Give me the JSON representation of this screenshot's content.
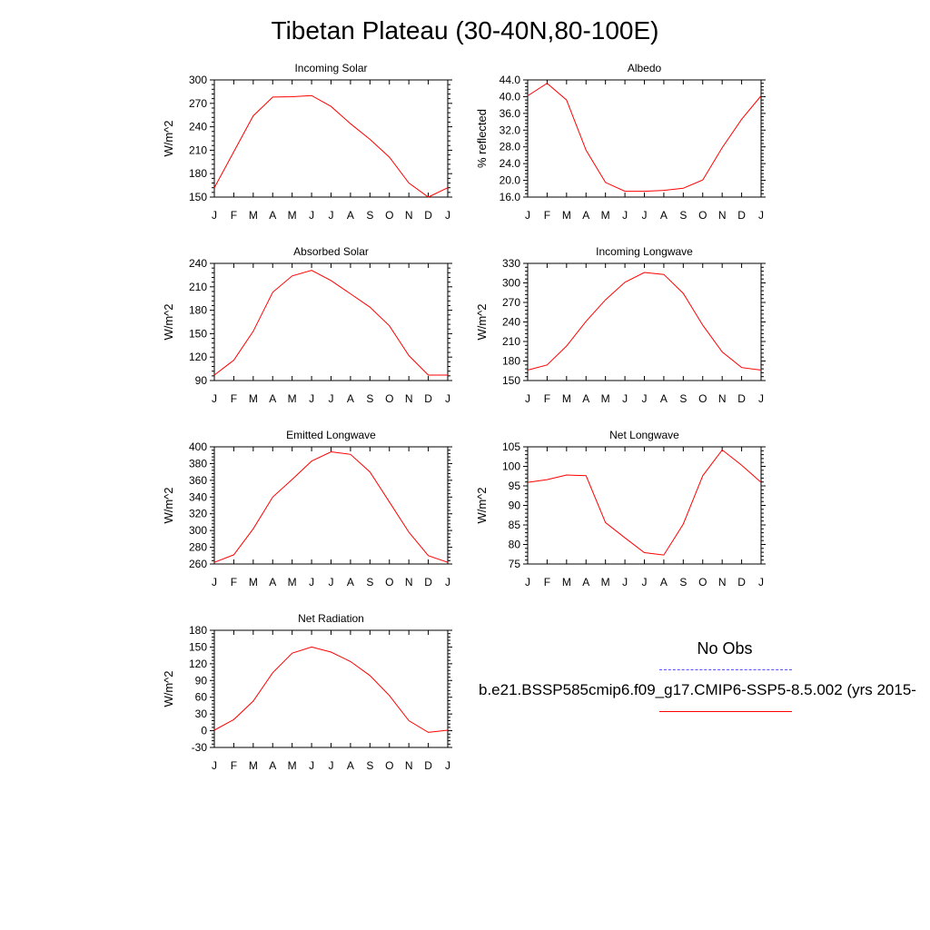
{
  "title": "Tibetan Plateau (30-40N,80-100E)",
  "legend": {
    "obs_label": "No Obs",
    "obs_color": "#5555ff",
    "model_label": "b.e21.BSSP585cmip6.f09_g17.CMIP6-SSP5-8.5.002 (yrs 2015-",
    "model_color": "#ff0000"
  },
  "chart_data": [
    {
      "type": "line",
      "title": "Incoming Solar",
      "ylabel": "W/m^2",
      "x": [
        "J",
        "F",
        "M",
        "A",
        "M",
        "J",
        "J",
        "A",
        "S",
        "O",
        "N",
        "D",
        "J"
      ],
      "ylim": [
        150,
        300
      ],
      "yticks": [
        150,
        180,
        210,
        240,
        270,
        300
      ],
      "ytick_labels": [
        "150",
        "180",
        "210",
        "240",
        "270",
        "300"
      ],
      "series": [
        {
          "values": [
            162,
            208,
            254,
            278,
            278.5,
            280,
            266,
            244,
            224,
            201,
            168,
            150,
            162
          ]
        }
      ]
    },
    {
      "type": "line",
      "title": "Albedo",
      "ylabel": "% reflected",
      "x": [
        "J",
        "F",
        "M",
        "A",
        "M",
        "J",
        "J",
        "A",
        "S",
        "O",
        "N",
        "D",
        "J"
      ],
      "ylim": [
        16,
        44
      ],
      "yticks": [
        16,
        20,
        24,
        28,
        32,
        36,
        40,
        44
      ],
      "ytick_labels": [
        "16.0",
        "20.0",
        "24.0",
        "28.0",
        "32.0",
        "36.0",
        "40.0",
        "44.0"
      ],
      "series": [
        {
          "values": [
            40.2,
            43.2,
            39.2,
            27.2,
            19.5,
            17.4,
            17.4,
            17.6,
            18.1,
            20.1,
            27.8,
            34.6,
            40.2
          ]
        }
      ]
    },
    {
      "type": "line",
      "title": "Absorbed Solar",
      "ylabel": "W/m^2",
      "x": [
        "J",
        "F",
        "M",
        "A",
        "M",
        "J",
        "J",
        "A",
        "S",
        "O",
        "N",
        "D",
        "J"
      ],
      "ylim": [
        90,
        240
      ],
      "yticks": [
        90,
        120,
        150,
        180,
        210,
        240
      ],
      "ytick_labels": [
        "90",
        "120",
        "150",
        "180",
        "210",
        "240"
      ],
      "series": [
        {
          "values": [
            97,
            116,
            153,
            203,
            224,
            231,
            218,
            201,
            184,
            160,
            122,
            97,
            97
          ]
        }
      ]
    },
    {
      "type": "line",
      "title": "Incoming Longwave",
      "ylabel": "W/m^2",
      "x": [
        "J",
        "F",
        "M",
        "A",
        "M",
        "J",
        "J",
        "A",
        "S",
        "O",
        "N",
        "D",
        "J"
      ],
      "ylim": [
        150,
        330
      ],
      "yticks": [
        150,
        180,
        210,
        240,
        270,
        300,
        330
      ],
      "ytick_labels": [
        "150",
        "180",
        "210",
        "240",
        "270",
        "300",
        "330"
      ],
      "series": [
        {
          "values": [
            166,
            174,
            203,
            241,
            274,
            301,
            316,
            313,
            284,
            235,
            194,
            170,
            166
          ]
        }
      ]
    },
    {
      "type": "line",
      "title": "Emitted Longwave",
      "ylabel": "W/m^2",
      "x": [
        "J",
        "F",
        "M",
        "A",
        "M",
        "J",
        "J",
        "A",
        "S",
        "O",
        "N",
        "D",
        "J"
      ],
      "ylim": [
        260,
        400
      ],
      "yticks": [
        260,
        280,
        300,
        320,
        340,
        360,
        380,
        400
      ],
      "ytick_labels": [
        "260",
        "280",
        "300",
        "320",
        "340",
        "360",
        "380",
        "400"
      ],
      "series": [
        {
          "values": [
            262,
            271,
            302,
            340,
            361,
            383,
            394,
            391,
            370,
            334,
            298,
            270,
            262
          ]
        }
      ]
    },
    {
      "type": "line",
      "title": "Net Longwave",
      "ylabel": "W/m^2",
      "x": [
        "J",
        "F",
        "M",
        "A",
        "M",
        "J",
        "J",
        "A",
        "S",
        "O",
        "N",
        "D",
        "J"
      ],
      "ylim": [
        75,
        105
      ],
      "yticks": [
        75,
        80,
        85,
        90,
        95,
        100,
        105
      ],
      "ytick_labels": [
        "75",
        "80",
        "85",
        "90",
        "95",
        "100",
        "105"
      ],
      "series": [
        {
          "values": [
            95.9,
            96.6,
            97.8,
            97.6,
            85.6,
            81.7,
            77.9,
            77.3,
            85.2,
            97.6,
            104.2,
            100.3,
            95.9
          ]
        }
      ]
    },
    {
      "type": "line",
      "title": "Net Radiation",
      "ylabel": "W/m^2",
      "x": [
        "J",
        "F",
        "M",
        "A",
        "M",
        "J",
        "J",
        "A",
        "S",
        "O",
        "N",
        "D",
        "J"
      ],
      "ylim": [
        -30,
        180
      ],
      "yticks": [
        -30,
        0,
        30,
        60,
        90,
        120,
        150,
        180
      ],
      "ytick_labels": [
        "-30",
        "0",
        "30",
        "60",
        "90",
        "120",
        "150",
        "180"
      ],
      "series": [
        {
          "values": [
            1,
            20,
            53,
            104,
            139,
            150,
            141,
            124,
            99,
            63,
            18,
            -3,
            1
          ]
        }
      ]
    }
  ]
}
